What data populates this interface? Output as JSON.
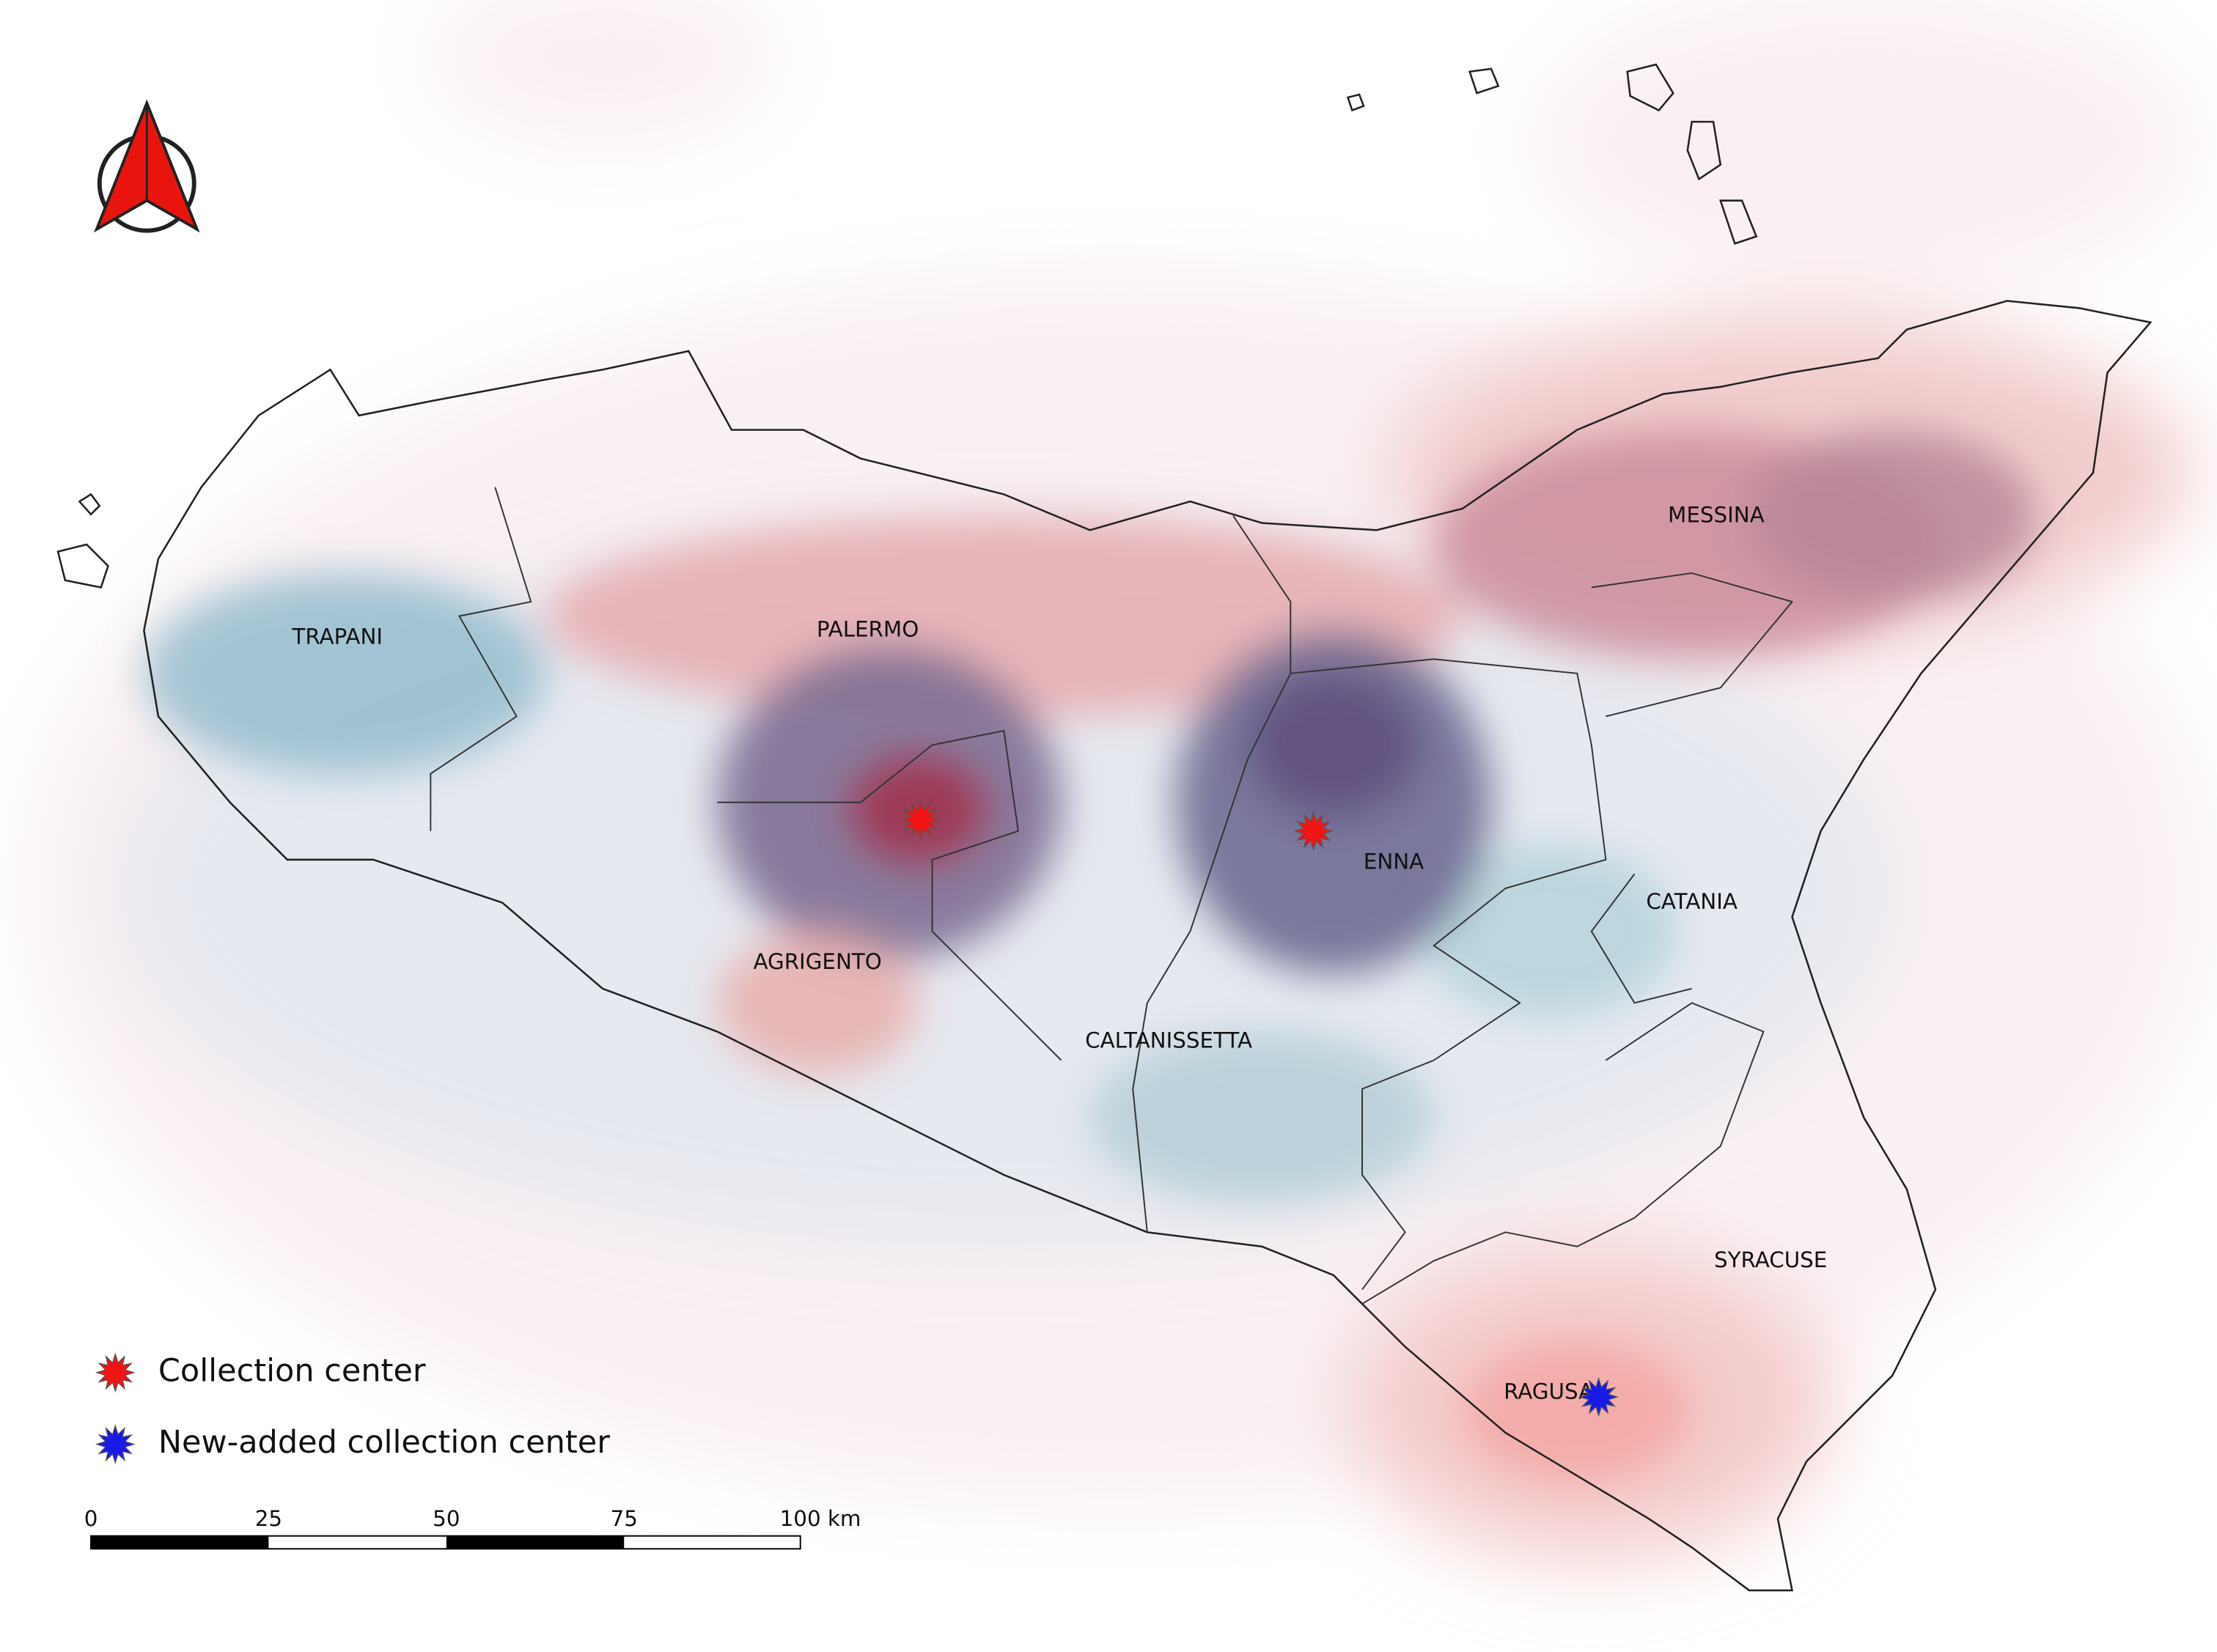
{
  "map": {
    "provinces": [
      "TRAPANI",
      "PALERMO",
      "AGRIGENTO",
      "CALTANISSETTA",
      "ENNA",
      "CATANIA",
      "MESSINA",
      "SYRACUSE",
      "RAGUSA"
    ],
    "legend": [
      "Collection center",
      "New-added collection center"
    ],
    "scale_bar": [
      "0",
      "25",
      "50",
      "75",
      "100 km"
    ]
  }
}
